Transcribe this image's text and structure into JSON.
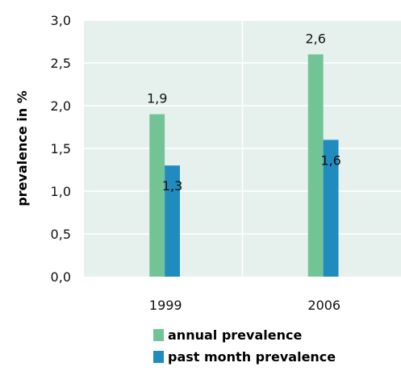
{
  "chart_data": {
    "type": "bar",
    "categories": [
      "1999",
      "2006"
    ],
    "series": [
      {
        "name": "annual prevalence",
        "values": [
          1.9,
          2.6
        ],
        "labels": [
          "1,9",
          "2,6"
        ],
        "color": "#72c395"
      },
      {
        "name": "past month prevalence",
        "values": [
          1.3,
          1.6
        ],
        "labels": [
          "1,3",
          "1,6"
        ],
        "color": "#1f8cbd"
      }
    ],
    "ylabel": "prevalence in %",
    "ylim": [
      0,
      3.0
    ],
    "yticks": [
      {
        "value": 0,
        "label": "0,0"
      },
      {
        "value": 0.5,
        "label": "0,5"
      },
      {
        "value": 1.0,
        "label": "1,0"
      },
      {
        "value": 1.5,
        "label": "1,5"
      },
      {
        "value": 2.0,
        "label": "2,0"
      },
      {
        "value": 2.5,
        "label": "2,5"
      },
      {
        "value": 3.0,
        "label": "3,0"
      }
    ],
    "grid": true,
    "background": "#e6f1ed",
    "legend_position": "bottom"
  }
}
